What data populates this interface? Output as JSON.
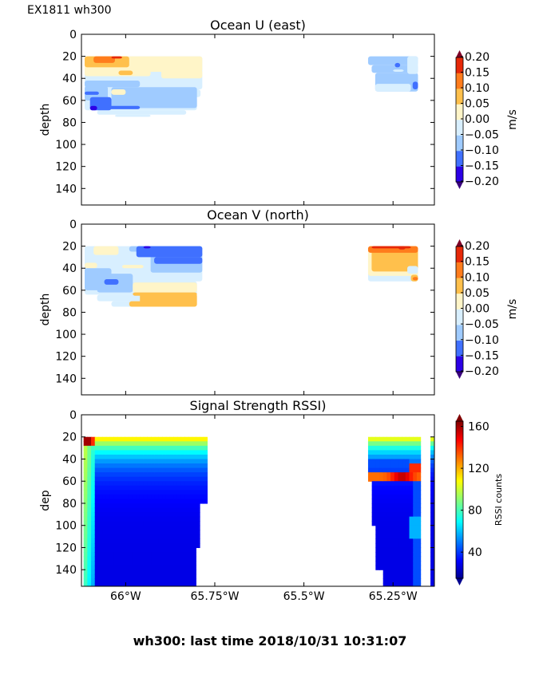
{
  "figure": {
    "suptitle": "EX1811 wh300",
    "footer": "wh300: last time 2018/10/31 10:31:07"
  },
  "chart_data": [
    {
      "type": "heatmap",
      "title": "Ocean U (east)",
      "ylabel": "depth",
      "xlabel": "",
      "ylim": [
        155,
        0
      ],
      "yticks": [
        0,
        20,
        40,
        60,
        80,
        100,
        120,
        140
      ],
      "xticks": [
        "66°W",
        "65.75°W",
        "65.5°W",
        "65.25°W"
      ],
      "xtick_labels_visible": false,
      "colorbar": {
        "label": "m/s",
        "ticks": [
          "0.20",
          "0.15",
          "0.10",
          "0.05",
          "0.00",
          "−0.05",
          "−0.10",
          "−0.15",
          "−0.20"
        ],
        "levels": [
          -0.2,
          -0.15,
          -0.1,
          -0.05,
          0.0,
          0.05,
          0.1,
          0.15,
          0.2
        ],
        "colors": [
          "#2c00e6",
          "#4070ff",
          "#9fcbff",
          "#d8efff",
          "#fff5c8",
          "#ffc04c",
          "#ff7c1c",
          "#e62808"
        ],
        "under": "#3a007e",
        "over": "#7e0026",
        "extend": "both"
      },
      "regions": [
        {
          "x_lon": [
            -66.08,
            -65.78
          ],
          "depth": [
            20,
            75
          ],
          "note": "positive near surface (20-35 m), negative below 45 m"
        },
        {
          "x_lon": [
            -65.32,
            -65.18
          ],
          "depth": [
            20,
            55
          ],
          "note": "mostly -0.05 to -0.10"
        }
      ]
    },
    {
      "type": "heatmap",
      "title": "Ocean V (north)",
      "ylabel": "depth",
      "xlabel": "",
      "ylim": [
        155,
        0
      ],
      "yticks": [
        0,
        20,
        40,
        60,
        80,
        100,
        120,
        140
      ],
      "xticks": [
        "66°W",
        "65.75°W",
        "65.5°W",
        "65.25°W"
      ],
      "xtick_labels_visible": false,
      "colorbar": {
        "label": "m/s",
        "ticks": [
          "0.20",
          "0.15",
          "0.10",
          "0.05",
          "0.00",
          "−0.05",
          "−0.10",
          "−0.15",
          "−0.20"
        ],
        "levels": [
          -0.2,
          -0.15,
          -0.1,
          -0.05,
          0.0,
          0.05,
          0.1,
          0.15,
          0.2
        ],
        "colors": [
          "#2c00e6",
          "#4070ff",
          "#9fcbff",
          "#d8efff",
          "#fff5c8",
          "#ffc04c",
          "#ff7c1c",
          "#e62808"
        ],
        "under": "#3a007e",
        "over": "#7e0026",
        "extend": "both"
      },
      "regions": [
        {
          "x_lon": [
            -66.08,
            -65.78
          ],
          "depth": [
            20,
            75
          ],
          "note": "negative upper, positive 0.05-0.10 at 60-75 m"
        },
        {
          "x_lon": [
            -65.32,
            -65.18
          ],
          "depth": [
            20,
            55
          ],
          "note": "strong positive near surface up to 0.20"
        }
      ]
    },
    {
      "type": "heatmap",
      "title": "Signal Strength RSSI)",
      "ylabel": "dep",
      "xlabel": "",
      "ylim": [
        155,
        0
      ],
      "yticks": [
        0,
        20,
        40,
        60,
        80,
        100,
        120,
        140
      ],
      "xticks": [
        "66°W",
        "65.75°W",
        "65.5°W",
        "65.25°W"
      ],
      "xtick_labels_visible": true,
      "colorbar": {
        "label": "RSSI counts",
        "ticks": [
          "160",
          "120",
          "80",
          "40"
        ],
        "tick_values": [
          160,
          120,
          80,
          40
        ],
        "range": [
          15,
          165
        ],
        "colormap": "jet",
        "extend": "both"
      },
      "regions": [
        {
          "x_lon": [
            -66.08,
            -65.78
          ],
          "depth": [
            20,
            155
          ],
          "note": "~110 at 20 m decreasing to ~30 below 70 m; hot spot ~160 at top-left corner"
        },
        {
          "x_lon": [
            -65.32,
            -65.18
          ],
          "depth": [
            20,
            155
          ],
          "note": "~105 near surface, band ~150 at 55 m, ~30 below"
        },
        {
          "x_lon": [
            -65.15,
            -65.14
          ],
          "depth": [
            20,
            155
          ],
          "note": "narrow strip at right edge"
        }
      ]
    }
  ]
}
